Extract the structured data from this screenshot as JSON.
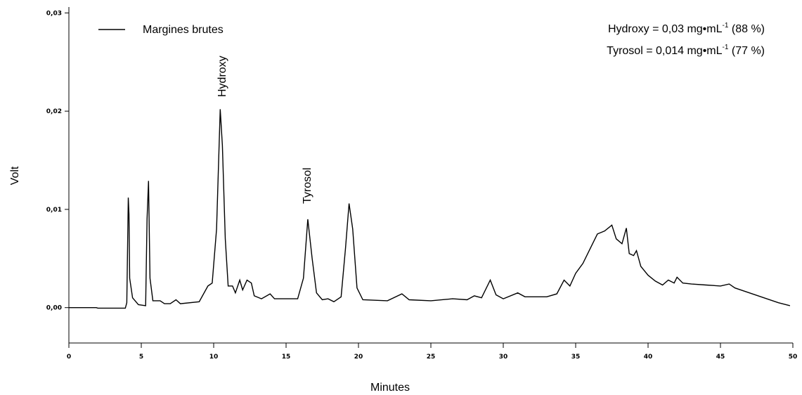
{
  "chart_data": {
    "type": "line",
    "xlabel": "Minutes",
    "ylabel": "Volt",
    "annotations": [
      "Hydroxy",
      "Tyrosol"
    ],
    "info": [
      {
        "text": "Hydroxy = 0,03 mg•mL",
        "sup": "-1",
        "tail": " (88 %)"
      },
      {
        "text": "Tyrosol = 0,014 mg•mL",
        "sup": "-1",
        "tail": " (77 %)"
      }
    ],
    "legend": "upper left",
    "xlim": [
      0,
      50
    ],
    "ylim": [
      -0.0036,
      0.0306
    ],
    "xticks": [
      0,
      5,
      10,
      15,
      20,
      25,
      30,
      35,
      40,
      45,
      50
    ],
    "yticks": [
      {
        "value": 0,
        "label": "0,00"
      },
      {
        "value": 0.01,
        "label": "0,01"
      },
      {
        "value": 0.02,
        "label": "0,02"
      },
      {
        "value": 0.03,
        "label": "0,03"
      }
    ],
    "x": [
      0,
      1.9,
      2.0,
      3.9,
      4.0,
      4.1,
      4.15,
      4.2,
      4.4,
      4.8,
      5.3,
      5.4,
      5.5,
      5.6,
      5.8,
      6.3,
      6.6,
      7.0,
      7.4,
      7.7,
      9.0,
      9.6,
      9.9,
      10.2,
      10.45,
      10.6,
      10.8,
      11.0,
      11.3,
      11.5,
      11.8,
      12.0,
      12.3,
      12.6,
      12.8,
      13.3,
      13.9,
      14.2,
      15.8,
      16.2,
      16.5,
      16.8,
      17.1,
      17.5,
      17.9,
      18.3,
      18.8,
      19.1,
      19.35,
      19.6,
      19.9,
      20.3,
      22.0,
      23.0,
      23.5,
      25,
      26.5,
      27.5,
      28,
      28.5,
      29.1,
      29.5,
      30,
      31,
      31.5,
      33,
      33.7,
      34.2,
      34.6,
      35.0,
      35.5,
      36.0,
      36.5,
      37.0,
      37.5,
      37.8,
      38.2,
      38.5,
      38.7,
      39.0,
      39.2,
      39.5,
      40,
      40.5,
      41,
      41.4,
      41.8,
      42,
      42.4,
      43,
      44,
      45,
      45.6,
      46,
      47,
      48,
      49,
      49.8
    ],
    "series": [
      {
        "name": "Margines brutes",
        "color": "#000000",
        "values": [
          0,
          0,
          -5e-05,
          -5e-05,
          0.0005,
          0.0112,
          0.0095,
          0.003,
          0.001,
          0.0003,
          0.0002,
          0.009,
          0.0129,
          0.003,
          0.0007,
          0.0007,
          0.0004,
          0.0004,
          0.0008,
          0.0004,
          0.0006,
          0.0022,
          0.0025,
          0.008,
          0.0202,
          0.0165,
          0.007,
          0.0022,
          0.0022,
          0.0015,
          0.0028,
          0.0018,
          0.0028,
          0.0025,
          0.0012,
          0.0009,
          0.0014,
          0.0009,
          0.0009,
          0.003,
          0.009,
          0.005,
          0.0015,
          0.0008,
          0.0009,
          0.0006,
          0.0011,
          0.006,
          0.0106,
          0.008,
          0.002,
          0.0008,
          0.0007,
          0.0014,
          0.0008,
          0.0007,
          0.0009,
          0.0008,
          0.0012,
          0.001,
          0.0028,
          0.0013,
          0.0009,
          0.0015,
          0.0011,
          0.0011,
          0.0014,
          0.0028,
          0.0022,
          0.0035,
          0.0045,
          0.006,
          0.0075,
          0.0078,
          0.0084,
          0.007,
          0.0065,
          0.0081,
          0.0055,
          0.0053,
          0.0058,
          0.0042,
          0.0033,
          0.0027,
          0.0023,
          0.0028,
          0.0025,
          0.0031,
          0.0025,
          0.0024,
          0.0023,
          0.0022,
          0.0024,
          0.002,
          0.0015,
          0.001,
          0.0005,
          0.0002
        ]
      }
    ]
  }
}
